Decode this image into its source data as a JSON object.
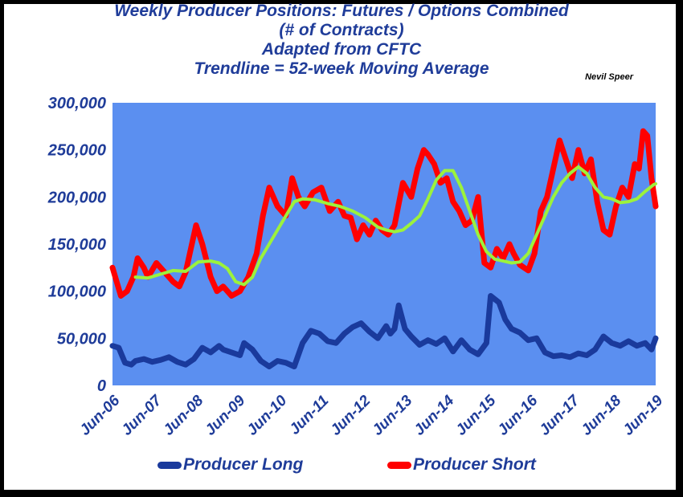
{
  "chart_data": {
    "type": "line",
    "title_lines": [
      "Weekly Producer Positions: Futures / Options Combined",
      "(# of Contracts)",
      "Adapted from CFTC",
      "Trendline = 52-week Moving Average"
    ],
    "author": "Nevil Speer",
    "ylim": [
      0,
      300000
    ],
    "y_ticks": [
      "300,000",
      "250,000",
      "200,000",
      "150,000",
      "100,000",
      "50,000",
      "0"
    ],
    "x_ticks": [
      "Jun-06",
      "Jun-07",
      "Jun-08",
      "Jun-09",
      "Jun-10",
      "Jun-11",
      "Jun-12",
      "Jun-13",
      "Jun-14",
      "Jun-15",
      "Jun-16",
      "Jun-17",
      "Jun-18",
      "Jun-19"
    ],
    "grid": false,
    "legend_position": "bottom",
    "colors": {
      "plot_bg": "#5b8ff0",
      "long": "#1a3a9c",
      "short": "#ff0000",
      "trend": "#9cf23c",
      "text": "#1f3c99"
    },
    "series": [
      {
        "name": "Producer Long",
        "key": "long",
        "x": [
          2006.45,
          2006.6,
          2006.75,
          2006.9,
          2007.0,
          2007.2,
          2007.4,
          2007.6,
          2007.8,
          2008.0,
          2008.2,
          2008.4,
          2008.6,
          2008.8,
          2009.0,
          2009.1,
          2009.3,
          2009.5,
          2009.6,
          2009.8,
          2010.0,
          2010.2,
          2010.4,
          2010.6,
          2010.8,
          2011.0,
          2011.2,
          2011.4,
          2011.6,
          2011.8,
          2012.0,
          2012.2,
          2012.4,
          2012.6,
          2012.8,
          2013.0,
          2013.1,
          2013.2,
          2013.3,
          2013.45,
          2013.6,
          2013.8,
          2014.0,
          2014.2,
          2014.4,
          2014.6,
          2014.8,
          2015.0,
          2015.2,
          2015.4,
          2015.5,
          2015.7,
          2015.85,
          2016.0,
          2016.2,
          2016.4,
          2016.6,
          2016.8,
          2017.0,
          2017.2,
          2017.4,
          2017.6,
          2017.8,
          2018.0,
          2018.2,
          2018.4,
          2018.6,
          2018.8,
          2019.0,
          2019.2,
          2019.35,
          2019.45
        ],
        "values": [
          42000,
          40000,
          24000,
          22000,
          26000,
          28000,
          25000,
          27000,
          30000,
          25000,
          22000,
          28000,
          40000,
          35000,
          42000,
          38000,
          35000,
          32000,
          45000,
          38000,
          26000,
          20000,
          26000,
          24000,
          20000,
          45000,
          58000,
          55000,
          47000,
          45000,
          55000,
          62000,
          66000,
          57000,
          50000,
          63000,
          55000,
          60000,
          85000,
          60000,
          52000,
          43000,
          48000,
          44000,
          50000,
          36000,
          48000,
          38000,
          33000,
          45000,
          95000,
          88000,
          70000,
          60000,
          56000,
          48000,
          50000,
          35000,
          31000,
          32000,
          30000,
          34000,
          32000,
          38000,
          52000,
          45000,
          42000,
          47000,
          42000,
          45000,
          38000,
          50000
        ]
      },
      {
        "name": "Producer Short",
        "key": "short",
        "x": [
          2006.45,
          2006.55,
          2006.65,
          2006.8,
          2006.95,
          2007.05,
          2007.2,
          2007.3,
          2007.5,
          2007.7,
          2007.9,
          2008.05,
          2008.2,
          2008.3,
          2008.45,
          2008.6,
          2008.8,
          2008.95,
          2009.1,
          2009.3,
          2009.5,
          2009.7,
          2009.9,
          2010.05,
          2010.2,
          2010.4,
          2010.6,
          2010.75,
          2010.9,
          2011.05,
          2011.25,
          2011.45,
          2011.65,
          2011.85,
          2012.0,
          2012.15,
          2012.3,
          2012.45,
          2012.6,
          2012.75,
          2012.9,
          2013.05,
          2013.2,
          2013.4,
          2013.6,
          2013.75,
          2013.9,
          2014.0,
          2014.15,
          2014.3,
          2014.45,
          2014.6,
          2014.75,
          2014.9,
          2015.05,
          2015.2,
          2015.35,
          2015.5,
          2015.65,
          2015.8,
          2015.95,
          2016.05,
          2016.2,
          2016.4,
          2016.55,
          2016.7,
          2016.85,
          2017.0,
          2017.15,
          2017.3,
          2017.45,
          2017.6,
          2017.75,
          2017.9,
          2018.05,
          2018.2,
          2018.35,
          2018.5,
          2018.65,
          2018.8,
          2018.95,
          2019.05,
          2019.15,
          2019.25,
          2019.35,
          2019.45
        ],
        "values": [
          125000,
          110000,
          95000,
          100000,
          115000,
          135000,
          125000,
          115000,
          130000,
          120000,
          110000,
          105000,
          120000,
          140000,
          170000,
          150000,
          115000,
          100000,
          105000,
          95000,
          100000,
          115000,
          140000,
          180000,
          210000,
          190000,
          180000,
          220000,
          200000,
          190000,
          205000,
          210000,
          185000,
          195000,
          180000,
          178000,
          155000,
          170000,
          160000,
          175000,
          165000,
          160000,
          170000,
          215000,
          200000,
          230000,
          250000,
          245000,
          235000,
          215000,
          220000,
          195000,
          185000,
          170000,
          175000,
          200000,
          130000,
          125000,
          145000,
          135000,
          150000,
          140000,
          128000,
          122000,
          140000,
          185000,
          200000,
          230000,
          260000,
          240000,
          220000,
          250000,
          225000,
          240000,
          195000,
          165000,
          160000,
          190000,
          210000,
          200000,
          235000,
          230000,
          270000,
          265000,
          220000,
          190000
        ]
      },
      {
        "name": "",
        "key": "trend",
        "x": [
          2007.0,
          2007.3,
          2007.6,
          2007.9,
          2008.2,
          2008.5,
          2008.8,
          2009.0,
          2009.2,
          2009.4,
          2009.6,
          2009.8,
          2010.0,
          2010.2,
          2010.4,
          2010.6,
          2010.8,
          2011.0,
          2011.3,
          2011.6,
          2011.9,
          2012.2,
          2012.5,
          2012.8,
          2013.0,
          2013.2,
          2013.4,
          2013.6,
          2013.8,
          2014.0,
          2014.2,
          2014.4,
          2014.6,
          2014.8,
          2015.0,
          2015.2,
          2015.4,
          2015.6,
          2015.8,
          2016.0,
          2016.2,
          2016.4,
          2016.6,
          2016.8,
          2017.0,
          2017.2,
          2017.4,
          2017.6,
          2017.8,
          2018.0,
          2018.2,
          2018.4,
          2018.6,
          2018.8,
          2019.0,
          2019.2,
          2019.4,
          2019.45
        ],
        "values": [
          115000,
          114000,
          118000,
          122000,
          121000,
          131000,
          132000,
          130000,
          124000,
          110000,
          107000,
          115000,
          135000,
          150000,
          165000,
          180000,
          195000,
          198000,
          197000,
          193000,
          190000,
          185000,
          178000,
          168000,
          165000,
          163000,
          165000,
          172000,
          180000,
          198000,
          218000,
          228000,
          228000,
          210000,
          185000,
          160000,
          142000,
          134000,
          132000,
          130000,
          131000,
          140000,
          160000,
          180000,
          200000,
          215000,
          225000,
          232000,
          225000,
          210000,
          200000,
          198000,
          194000,
          195000,
          198000,
          206000,
          213000,
          214000
        ]
      }
    ]
  }
}
